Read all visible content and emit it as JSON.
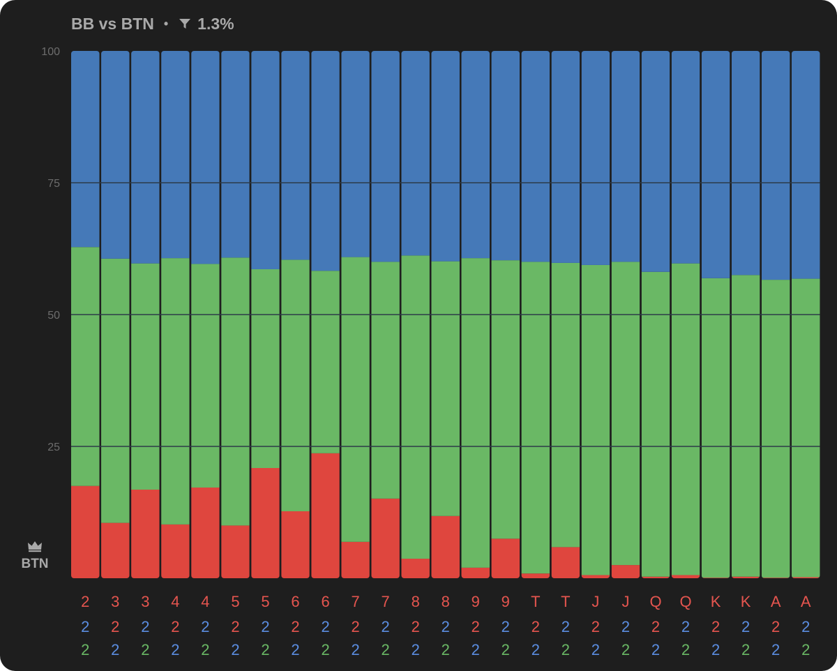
{
  "header": {
    "title": "BB vs BTN",
    "separator": "•",
    "filter_value": "1.3%",
    "filter_icon": "filter-funnel-icon"
  },
  "hero": {
    "label": "BTN",
    "icon": "crown-icon"
  },
  "colors": {
    "background": "#1e1e1e",
    "blue": "#4579b8",
    "green": "#6ab865",
    "red": "#df463e",
    "label_red": "#e5554f",
    "label_blue": "#5b8de0",
    "label_green": "#6ab865",
    "gridline": "#2c3a48",
    "axis_text": "#6d6d6d"
  },
  "chart_data": {
    "type": "bar",
    "stacked": true,
    "ylim": [
      0,
      100
    ],
    "yticks": [
      25,
      50,
      75,
      100
    ],
    "grid": true,
    "categories": [
      [
        "2",
        "2",
        "2"
      ],
      [
        "3",
        "2",
        "2"
      ],
      [
        "3",
        "2",
        "2"
      ],
      [
        "4",
        "2",
        "2"
      ],
      [
        "4",
        "2",
        "2"
      ],
      [
        "5",
        "2",
        "2"
      ],
      [
        "5",
        "2",
        "2"
      ],
      [
        "6",
        "2",
        "2"
      ],
      [
        "6",
        "2",
        "2"
      ],
      [
        "7",
        "2",
        "2"
      ],
      [
        "7",
        "2",
        "2"
      ],
      [
        "8",
        "2",
        "2"
      ],
      [
        "8",
        "2",
        "2"
      ],
      [
        "9",
        "2",
        "2"
      ],
      [
        "9",
        "2",
        "2"
      ],
      [
        "T",
        "2",
        "2"
      ],
      [
        "T",
        "2",
        "2"
      ],
      [
        "J",
        "2",
        "2"
      ],
      [
        "J",
        "2",
        "2"
      ],
      [
        "Q",
        "2",
        "2"
      ],
      [
        "Q",
        "2",
        "2"
      ],
      [
        "K",
        "2",
        "2"
      ],
      [
        "K",
        "2",
        "2"
      ],
      [
        "A",
        "2",
        "2"
      ],
      [
        "A",
        "2",
        "2"
      ]
    ],
    "category_label_colors": [
      [
        "red",
        "blue",
        "green"
      ],
      [
        "red",
        "red",
        "blue"
      ],
      [
        "red",
        "blue",
        "green"
      ],
      [
        "red",
        "red",
        "blue"
      ],
      [
        "red",
        "blue",
        "green"
      ],
      [
        "red",
        "red",
        "blue"
      ],
      [
        "red",
        "blue",
        "green"
      ],
      [
        "red",
        "red",
        "blue"
      ],
      [
        "red",
        "blue",
        "green"
      ],
      [
        "red",
        "red",
        "blue"
      ],
      [
        "red",
        "blue",
        "green"
      ],
      [
        "red",
        "red",
        "blue"
      ],
      [
        "red",
        "blue",
        "green"
      ],
      [
        "red",
        "red",
        "blue"
      ],
      [
        "red",
        "blue",
        "green"
      ],
      [
        "red",
        "red",
        "blue"
      ],
      [
        "red",
        "blue",
        "green"
      ],
      [
        "red",
        "red",
        "blue"
      ],
      [
        "red",
        "blue",
        "green"
      ],
      [
        "red",
        "red",
        "blue"
      ],
      [
        "red",
        "blue",
        "green"
      ],
      [
        "red",
        "red",
        "blue"
      ],
      [
        "red",
        "blue",
        "green"
      ],
      [
        "red",
        "red",
        "blue"
      ],
      [
        "red",
        "blue",
        "green"
      ]
    ],
    "series": [
      {
        "color": "red",
        "values": [
          17.5,
          10.5,
          16.8,
          10.2,
          17.2,
          10.0,
          20.9,
          12.7,
          23.7,
          6.9,
          15.1,
          3.7,
          11.8,
          2.0,
          7.5,
          0.9,
          5.9,
          0.6,
          2.5,
          0.3,
          0.6,
          0.1,
          0.3,
          0.1,
          0.2
        ]
      },
      {
        "color": "green",
        "values": [
          45.3,
          50.1,
          42.9,
          50.5,
          42.4,
          50.8,
          37.7,
          47.7,
          34.6,
          54.0,
          44.9,
          57.5,
          48.3,
          58.7,
          52.8,
          59.1,
          53.9,
          58.8,
          57.5,
          57.8,
          59.1,
          56.8,
          57.2,
          56.5,
          56.6
        ]
      },
      {
        "color": "blue",
        "values": [
          37.2,
          39.4,
          40.3,
          39.3,
          40.4,
          39.2,
          41.4,
          39.6,
          41.7,
          39.1,
          40.0,
          38.8,
          39.9,
          39.3,
          39.7,
          40.0,
          40.2,
          40.6,
          40.0,
          41.9,
          40.3,
          43.1,
          42.5,
          43.4,
          43.2
        ]
      }
    ]
  }
}
